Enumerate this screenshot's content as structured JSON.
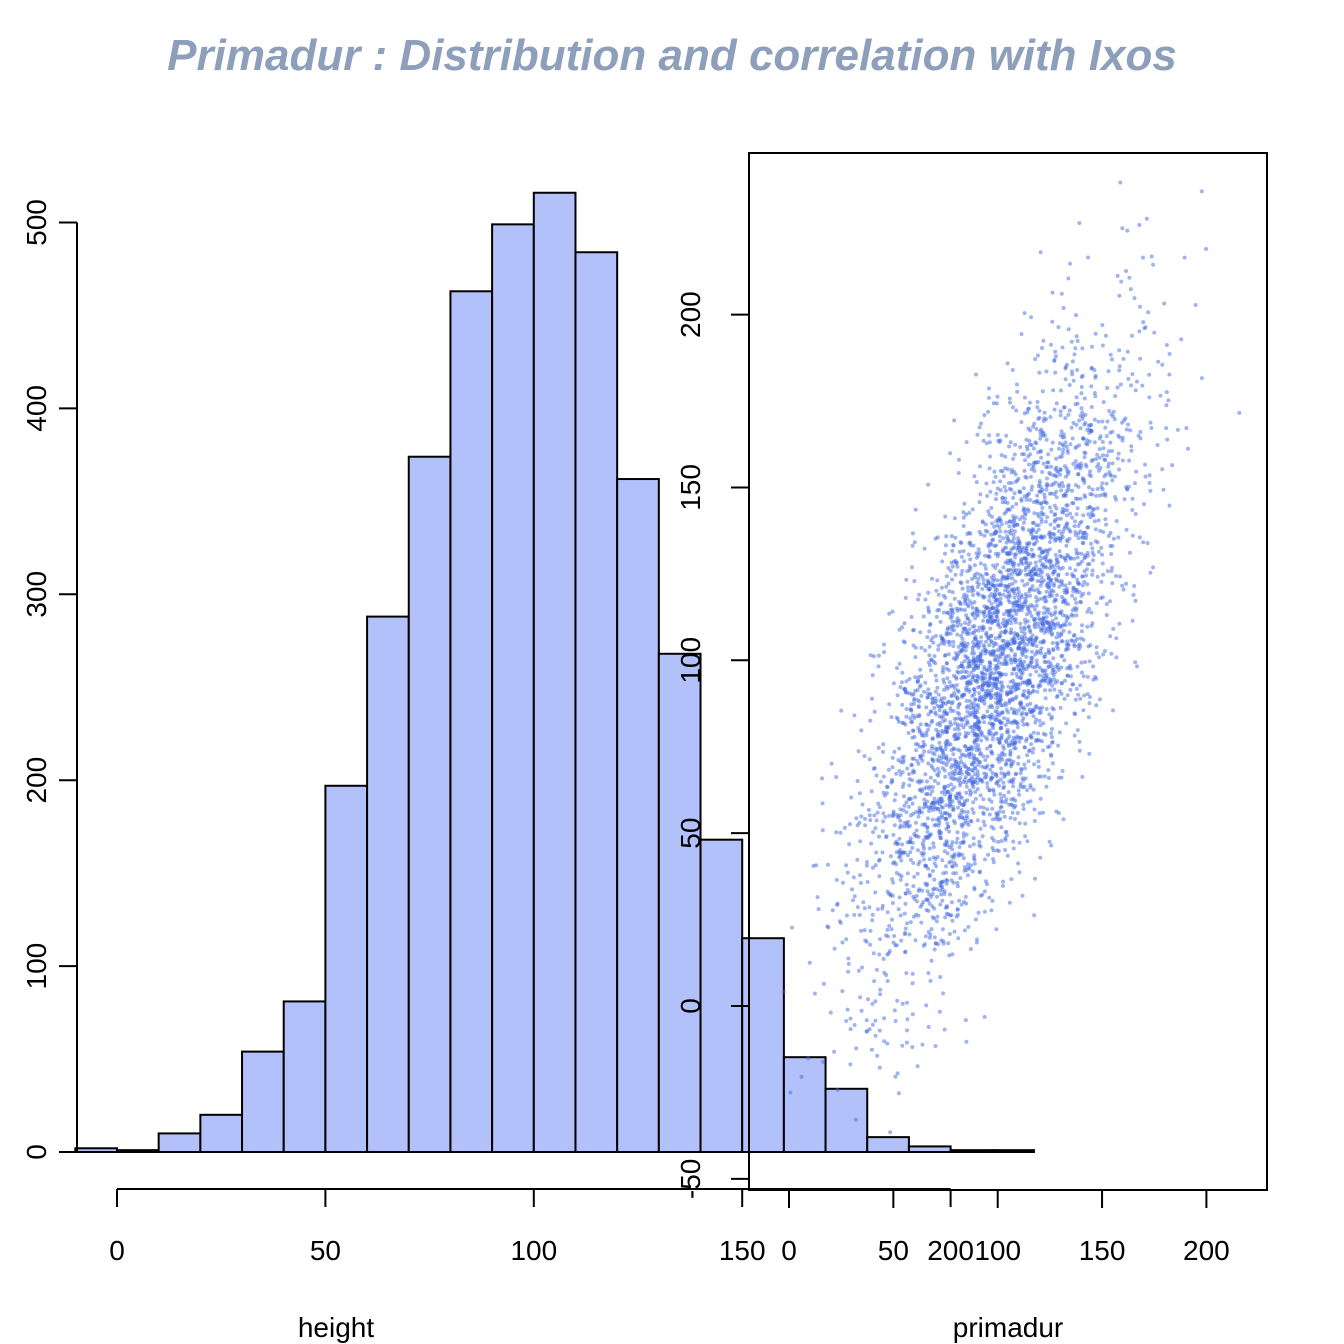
{
  "title": "Primadur : Distribution and correlation with Ixos",
  "colors": {
    "title": "#8d9fba",
    "bar_fill": "#b3c1fb",
    "point": "#4169e1"
  },
  "chart_data": [
    {
      "type": "bar",
      "kind": "histogram",
      "xlabel": "height",
      "ylabel": "",
      "bin_edges": [
        -10,
        0,
        10,
        20,
        30,
        40,
        50,
        60,
        70,
        80,
        90,
        100,
        110,
        120,
        130,
        140,
        150,
        160,
        170,
        180,
        190,
        200,
        210,
        220
      ],
      "values": [
        2,
        1,
        10,
        20,
        54,
        81,
        197,
        288,
        374,
        463,
        499,
        516,
        484,
        362,
        268,
        168,
        115,
        51,
        34,
        8,
        3,
        1,
        1
      ],
      "xlim": [
        0,
        200
      ],
      "ylim": [
        0,
        500
      ],
      "x_ticks": [
        0,
        50,
        100,
        150,
        200
      ],
      "y_ticks": [
        0,
        100,
        200,
        300,
        400,
        500
      ]
    },
    {
      "type": "scatter",
      "xlabel": "primadur",
      "ylabel": "",
      "n_points": 4000,
      "x_mean": 100,
      "x_sd": 31,
      "y_mean": 100,
      "y_sd": 42,
      "correlation": 0.71,
      "xlim": [
        -10,
        230
      ],
      "ylim": [
        -50,
        245
      ],
      "x_ticks": [
        0,
        50,
        100,
        150,
        200
      ],
      "y_ticks": [
        -50,
        0,
        50,
        100,
        150,
        200
      ],
      "box": true
    }
  ]
}
